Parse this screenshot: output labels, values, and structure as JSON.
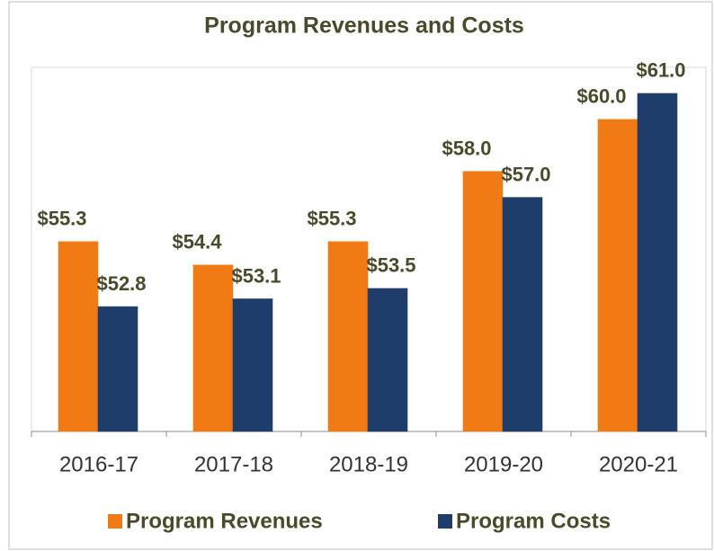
{
  "chart_data": {
    "type": "bar",
    "title": "Program Revenues and Costs",
    "categories": [
      "2016-17",
      "2017-18",
      "2018-19",
      "2019-20",
      "2020-21"
    ],
    "series": [
      {
        "name": "Program Revenues",
        "color": "#f07b14",
        "values": [
          55.3,
          54.4,
          55.3,
          58.0,
          60.0
        ],
        "value_labels": [
          "$55.3",
          "$54.4",
          "$55.3",
          "$58.0",
          "$60.0"
        ]
      },
      {
        "name": "Program Costs",
        "color": "#1f3d6b",
        "values": [
          52.8,
          53.1,
          53.5,
          57.0,
          61.0
        ],
        "value_labels": [
          "$52.8",
          "$53.1",
          "$53.5",
          "$57.0",
          "$61.0"
        ]
      }
    ],
    "ylim": [
      48,
      62
    ],
    "legend": "bottom"
  }
}
